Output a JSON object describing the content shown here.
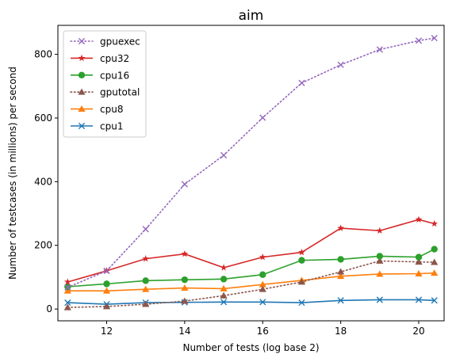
{
  "chart_data": {
    "type": "line",
    "title": "aim",
    "xlabel": "Number of tests (log base 2)",
    "ylabel": "Number of testcases (in millions) per second",
    "xlim": [
      10.75,
      20.65
    ],
    "ylim": [
      -37,
      891
    ],
    "xticks": [
      12,
      14,
      16,
      18,
      20
    ],
    "yticks": [
      0,
      200,
      400,
      600,
      800
    ],
    "grid": false,
    "legend_position": "top-left",
    "x": [
      11,
      12,
      13,
      14,
      15,
      16,
      17,
      18,
      19,
      20,
      20.4
    ],
    "series": [
      {
        "name": "gpuexec",
        "color": "#9467bd",
        "linestyle": "dotted",
        "marker": "x",
        "values": [
          68,
          120,
          251,
          392,
          483,
          601,
          710,
          767,
          815,
          843,
          851
        ]
      },
      {
        "name": "cpu32",
        "color": "#d62728",
        "linestyle": "solid",
        "marker": "star",
        "values": [
          85,
          120,
          158,
          173,
          130,
          163,
          178,
          254,
          246,
          281,
          268
        ]
      },
      {
        "name": "cpu16",
        "color": "#2ca02c",
        "linestyle": "solid",
        "marker": "circle",
        "values": [
          70,
          79,
          89,
          92,
          94,
          108,
          153,
          156,
          166,
          163,
          188
        ]
      },
      {
        "name": "gputotal",
        "color": "#8c564b",
        "linestyle": "dotted",
        "marker": "triangle",
        "values": [
          5,
          8,
          15,
          25,
          42,
          62,
          85,
          117,
          151,
          148,
          147
        ]
      },
      {
        "name": "cpu8",
        "color": "#ff7f0e",
        "linestyle": "solid",
        "marker": "triangle",
        "values": [
          57,
          57,
          62,
          66,
          64,
          77,
          90,
          103,
          110,
          111,
          113
        ]
      },
      {
        "name": "cpu1",
        "color": "#1f77b4",
        "linestyle": "solid",
        "marker": "x",
        "values": [
          20,
          15,
          20,
          21,
          22,
          22,
          20,
          27,
          29,
          29,
          27
        ]
      }
    ]
  }
}
